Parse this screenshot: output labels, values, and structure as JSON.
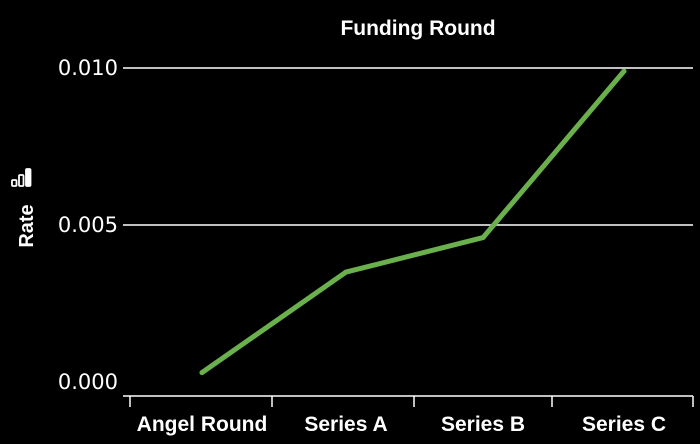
{
  "chart_data": {
    "type": "line",
    "title": "Funding Round",
    "xlabel": "",
    "ylabel": "Rate",
    "categories": [
      "Angel Round",
      "Series A",
      "Series B",
      "Series C"
    ],
    "series": [
      {
        "values": [
          0.0003,
          0.0035,
          0.0046,
          0.0099
        ]
      }
    ],
    "ylim": [
      0.0,
      0.0105
    ],
    "yticks": [
      "0.000",
      "0.005",
      "0.010"
    ],
    "ytick_values": [
      0.0,
      0.005,
      0.01
    ],
    "grid": "horizontal",
    "line_color": "#6ab04c",
    "background": "#000000",
    "ylabel_icon": "bar-chart-icon"
  }
}
